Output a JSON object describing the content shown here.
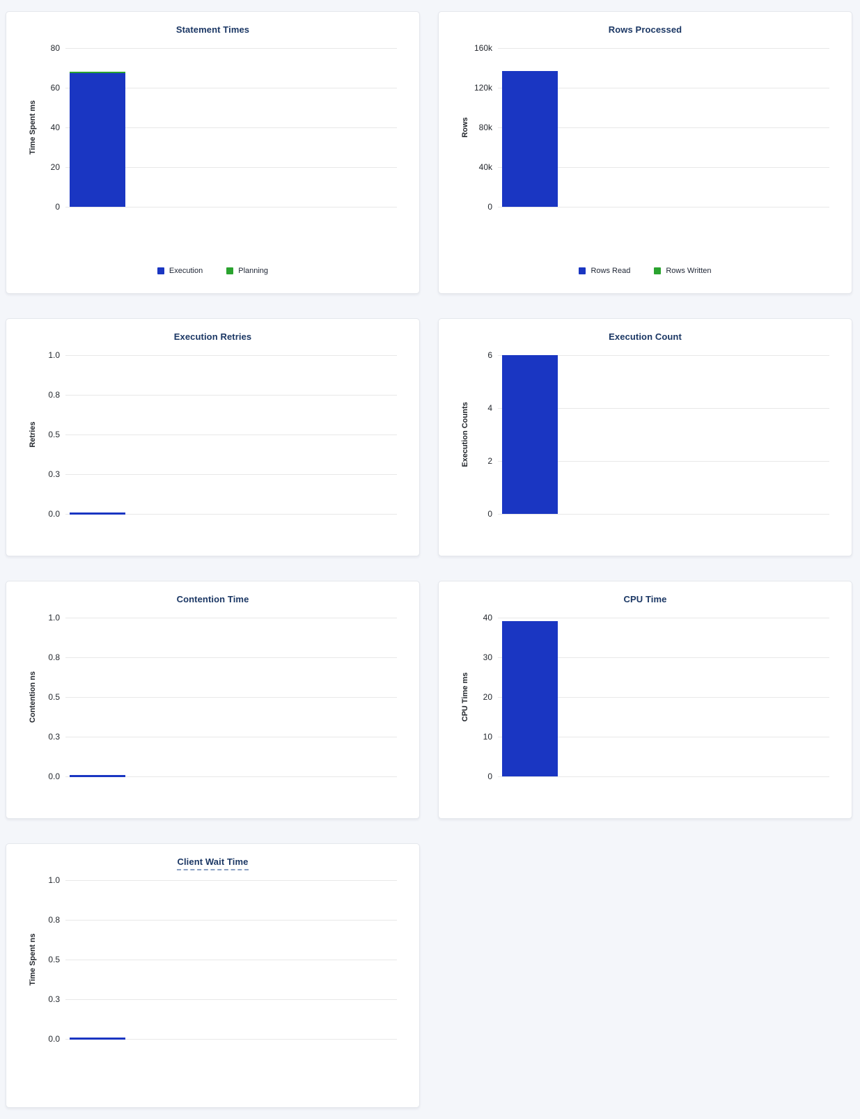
{
  "page": {
    "background": "#f4f6fa"
  },
  "colors": {
    "bar_blue": "#1a36c2",
    "bar_green": "#2aa32f",
    "title_navy": "#1b3764",
    "tick_text": "#24282e",
    "gridline": "#e8e8e8",
    "card_background": "#ffffff",
    "card_border": "#e4e7ec"
  },
  "chart_data": [
    {
      "type": "bar",
      "title": "Statement Times",
      "ylabel": "Time Spent ms",
      "categories": [
        ""
      ],
      "yticks": [
        "80",
        "60",
        "40",
        "20",
        "0"
      ],
      "ylim": [
        0,
        80
      ],
      "grid": "horizontal",
      "stacked": true,
      "legend_position": "bottom",
      "series": [
        {
          "name": "Execution",
          "values": [
            67.4
          ],
          "color": "#1a36c2"
        },
        {
          "name": "Planning",
          "values": [
            0.7
          ],
          "color": "#2aa32f"
        }
      ],
      "legend": [
        {
          "label": "Execution",
          "color": "#1a36c2"
        },
        {
          "label": "Planning",
          "color": "#2aa32f"
        }
      ]
    },
    {
      "type": "bar",
      "title": "Rows Processed",
      "ylabel": "Rows",
      "categories": [
        ""
      ],
      "yticks": [
        "160k",
        "120k",
        "80k",
        "40k",
        "0"
      ],
      "ylim": [
        0,
        160000
      ],
      "grid": "horizontal",
      "stacked": true,
      "legend_position": "bottom",
      "series": [
        {
          "name": "Rows Read",
          "values": [
            137000
          ],
          "color": "#1a36c2"
        },
        {
          "name": "Rows Written",
          "values": [
            0
          ],
          "color": "#2aa32f"
        }
      ],
      "legend": [
        {
          "label": "Rows Read",
          "color": "#1a36c2"
        },
        {
          "label": "Rows Written",
          "color": "#2aa32f"
        }
      ]
    },
    {
      "type": "bar",
      "title": "Execution Retries",
      "ylabel": "Retries",
      "categories": [
        ""
      ],
      "yticks": [
        "1.0",
        "0.8",
        "0.5",
        "0.3",
        "0.0"
      ],
      "ylim": [
        0,
        1
      ],
      "grid": "horizontal",
      "stacked": false,
      "legend_position": "none",
      "series": [
        {
          "name": "Retries",
          "values": [
            0
          ],
          "color": "#1a36c2"
        }
      ]
    },
    {
      "type": "bar",
      "title": "Execution Count",
      "ylabel": "Execution Counts",
      "categories": [
        ""
      ],
      "yticks": [
        "6",
        "4",
        "2",
        "0"
      ],
      "ylim": [
        0,
        6
      ],
      "grid": "horizontal",
      "stacked": false,
      "legend_position": "none",
      "series": [
        {
          "name": "Execution Count",
          "values": [
            6
          ],
          "color": "#1a36c2"
        }
      ]
    },
    {
      "type": "bar",
      "title": "Contention Time",
      "ylabel": "Contention ns",
      "categories": [
        ""
      ],
      "yticks": [
        "1.0",
        "0.8",
        "0.5",
        "0.3",
        "0.0"
      ],
      "ylim": [
        0,
        1
      ],
      "grid": "horizontal",
      "stacked": false,
      "legend_position": "none",
      "series": [
        {
          "name": "Contention",
          "values": [
            0
          ],
          "color": "#1a36c2"
        }
      ]
    },
    {
      "type": "bar",
      "title": "CPU Time",
      "ylabel": "CPU Time ms",
      "categories": [
        ""
      ],
      "yticks": [
        "40",
        "30",
        "20",
        "10",
        "0"
      ],
      "ylim": [
        0,
        40
      ],
      "grid": "horizontal",
      "stacked": false,
      "legend_position": "none",
      "series": [
        {
          "name": "CPU Time",
          "values": [
            39.1
          ],
          "color": "#1a36c2"
        }
      ]
    },
    {
      "type": "bar",
      "title": "Client Wait Time",
      "title_underline": "dashed",
      "ylabel": "Time Spent ns",
      "categories": [
        ""
      ],
      "yticks": [
        "1.0",
        "0.8",
        "0.5",
        "0.3",
        "0.0"
      ],
      "ylim": [
        0,
        1
      ],
      "grid": "horizontal",
      "stacked": false,
      "legend_position": "none",
      "series": [
        {
          "name": "Time Spent",
          "values": [
            0
          ],
          "color": "#1a36c2"
        }
      ]
    }
  ]
}
